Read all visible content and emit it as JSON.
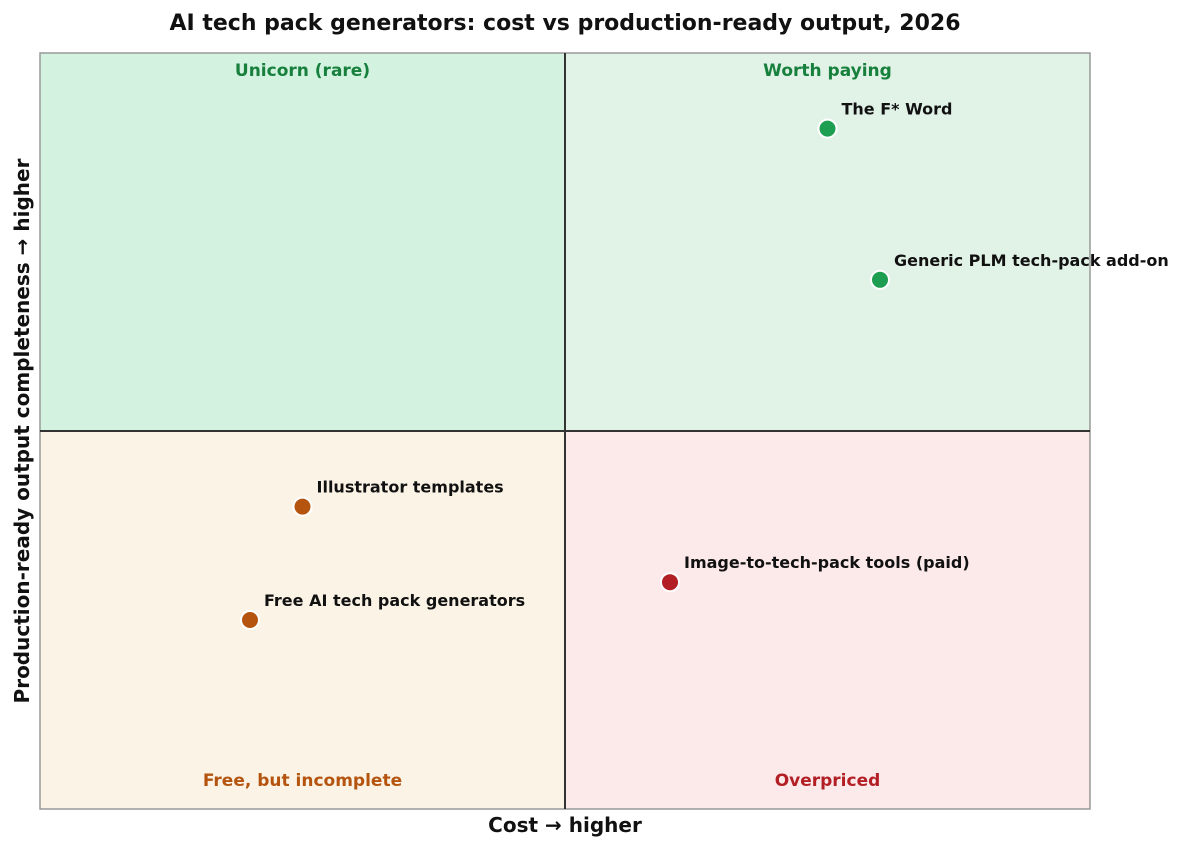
{
  "chart_data": {
    "type": "scatter",
    "title": "AI tech pack generators: cost vs production-ready output, 2026",
    "xlabel": "Cost  →  higher",
    "ylabel": "Production-ready output completeness  →  higher",
    "xlim": [
      0,
      10
    ],
    "ylim": [
      0,
      10
    ],
    "grid": false,
    "quadrants": [
      {
        "label": "Unicorn (rare)",
        "position": "top-left",
        "fill": "#d3f2e0",
        "text_color": "#16803c"
      },
      {
        "label": "Worth paying",
        "position": "top-right",
        "fill": "#e1f2e7",
        "text_color": "#16803c"
      },
      {
        "label": "Free, but incomplete",
        "position": "bottom-left",
        "fill": "#fbf4e6",
        "text_color": "#b5540f"
      },
      {
        "label": "Overpriced",
        "position": "bottom-right",
        "fill": "#fce9ea",
        "text_color": "#b21f24"
      }
    ],
    "points": [
      {
        "label": "The F* Word",
        "x": 7.5,
        "y": 9.0,
        "color": "#1e9e50"
      },
      {
        "label": "Generic PLM tech-pack add-on",
        "x": 8.0,
        "y": 7.0,
        "color": "#1e9e50"
      },
      {
        "label": "Illustrator templates",
        "x": 2.5,
        "y": 4.0,
        "color": "#b5540f"
      },
      {
        "label": "Free AI tech pack generators",
        "x": 2.0,
        "y": 2.5,
        "color": "#b5540f"
      },
      {
        "label": "Image-to-tech-pack tools (paid)",
        "x": 6.0,
        "y": 3.0,
        "color": "#b21f24"
      }
    ]
  }
}
